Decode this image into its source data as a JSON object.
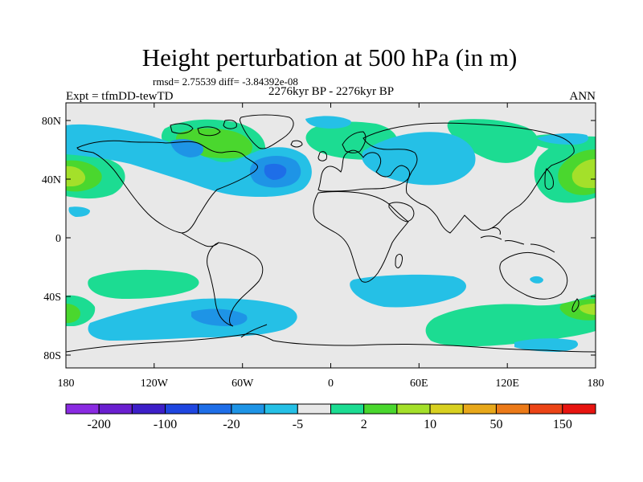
{
  "figure": {
    "title": "Height perturbation at 500 hPa (in m)",
    "stats": "rmsd= 2.75539  diff= -3.84392e-08",
    "experiment": "Expt = tfmDD-tewTD",
    "period": "2276kyr BP - 2276kyr BP",
    "season": "ANN"
  },
  "axes": {
    "lon_ticks": [
      "180",
      "120W",
      "60W",
      "0",
      "60E",
      "120E",
      "180"
    ],
    "lat_ticks": [
      "80N",
      "40N",
      "0",
      "40S",
      "80S"
    ]
  },
  "colorbar": {
    "colors": [
      "#8a2be2",
      "#6a1fd0",
      "#3d1fc8",
      "#1f46e0",
      "#1e6ee8",
      "#1e94e6",
      "#25c0e6",
      "#e8e8e8",
      "#1cdc92",
      "#4ad72e",
      "#a4e02a",
      "#d8d020",
      "#e8a81a",
      "#ec7a18",
      "#ec4416",
      "#e81410"
    ],
    "labels": [
      "-200",
      "-100",
      "-20",
      "-5",
      "2",
      "10",
      "50",
      "150"
    ]
  },
  "field_colors": {
    "land_background": "#e8e8e8",
    "neg_light": "#25c0e6",
    "neg_mid": "#1e94e6",
    "pos_light": "#1cdc92",
    "pos_mid": "#4ad72e",
    "pos_strong": "#a4e02a",
    "coast": "#000000"
  }
}
